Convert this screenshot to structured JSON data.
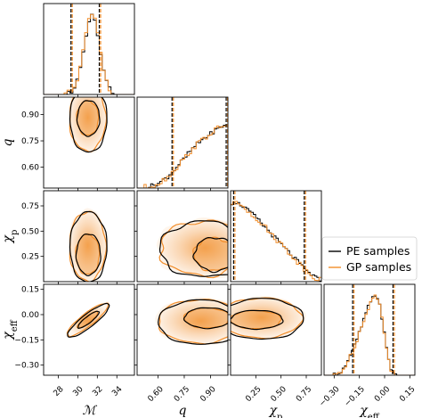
{
  "chart_data": {
    "type": "corner",
    "parameters": [
      {
        "key": "mc",
        "label": "ℳ",
        "range": [
          26.5,
          35.8
        ],
        "ticks": [
          28,
          30,
          32,
          34
        ],
        "tick_labels": [
          "28",
          "30",
          "32",
          "34"
        ],
        "median": 31.0,
        "ci": [
          29.3,
          32.2
        ]
      },
      {
        "key": "q",
        "label": "q",
        "range": [
          0.48,
          1.0
        ],
        "ticks": [
          0.6,
          0.75,
          0.9
        ],
        "tick_labels": [
          "0.60",
          "0.75",
          "0.90"
        ],
        "median": 0.88,
        "ci": [
          0.68,
          0.99
        ]
      },
      {
        "key": "chip",
        "label": "χp",
        "label_main": "χ",
        "label_sub": "p",
        "range": [
          0.0,
          0.9
        ],
        "ticks": [
          0.25,
          0.5,
          0.75
        ],
        "tick_labels": [
          "0.25",
          "0.50",
          "0.75"
        ],
        "median": 0.35,
        "ci": [
          0.03,
          0.73
        ]
      },
      {
        "key": "chieff",
        "label": "χeff",
        "label_main": "χ",
        "label_sub": "eff",
        "range": [
          -0.36,
          0.18
        ],
        "ticks": [
          -0.3,
          -0.15,
          0.0,
          0.15
        ],
        "tick_labels": [
          "−0.30",
          "−0.15",
          "0.00",
          "0.15"
        ],
        "median": -0.03,
        "ci": [
          -0.19,
          0.05
        ]
      }
    ],
    "series": [
      {
        "name": "PE samples",
        "color": "#000000"
      },
      {
        "name": "GP samples",
        "color": "#f28e2b"
      }
    ],
    "histograms": {
      "mc": {
        "bin_edges_from": 26.5,
        "bin_width": 0.3,
        "values": [
          0,
          0,
          0,
          0,
          0,
          0,
          0,
          1,
          2,
          4,
          9,
          18,
          33,
          55,
          75,
          92,
          100,
          93,
          75,
          52,
          32,
          17,
          8,
          3,
          1,
          0,
          0,
          0,
          0,
          0,
          0,
          0
        ]
      },
      "q": {
        "bin_edges_from": 0.48,
        "bin_width": 0.013,
        "values": [
          0,
          0,
          0,
          1,
          1,
          2,
          3,
          4,
          5,
          6,
          8,
          10,
          12,
          14,
          17,
          20,
          23,
          26,
          30,
          33,
          36,
          39,
          43,
          46,
          49,
          52,
          55,
          57,
          60,
          62,
          64,
          66,
          68,
          70,
          72,
          74,
          75,
          77,
          78,
          80
        ]
      },
      "chip": {
        "bin_edges_from": 0.0,
        "bin_width": 0.0225,
        "values": [
          98,
          100,
          99,
          97,
          96,
          94,
          92,
          89,
          87,
          84,
          82,
          79,
          76,
          73,
          70,
          67,
          64,
          61,
          58,
          55,
          52,
          49,
          46,
          43,
          40,
          37,
          34,
          31,
          28,
          25,
          22,
          19,
          16,
          13,
          11,
          9,
          7,
          5,
          3,
          2
        ]
      },
      "chieff": {
        "bin_edges_from": -0.36,
        "bin_width": 0.0135,
        "values": [
          0,
          0,
          0,
          0,
          1,
          2,
          3,
          5,
          8,
          12,
          17,
          23,
          30,
          37,
          45,
          53,
          61,
          69,
          77,
          85,
          91,
          96,
          100,
          97,
          88,
          72,
          52,
          33,
          18,
          8,
          3,
          1,
          0,
          0,
          0,
          0,
          0,
          0,
          0,
          0
        ]
      }
    },
    "contours_2d": {
      "pairs": [
        "q|mc",
        "chip|mc",
        "chip|q",
        "chieff|mc",
        "chieff|q",
        "chieff|chip"
      ],
      "levels": [
        "inner",
        "outer"
      ]
    },
    "legend_position": "right"
  }
}
